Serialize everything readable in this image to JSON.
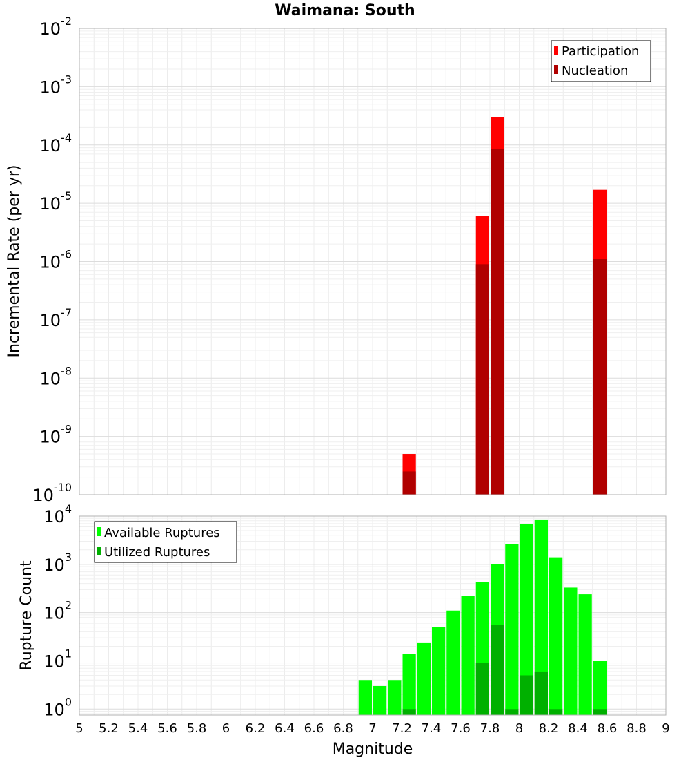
{
  "title": "Waimana: South",
  "x_axis": {
    "label": "Magnitude",
    "range": [
      5,
      9
    ],
    "ticks": [
      "5",
      "5.2",
      "5.4",
      "5.6",
      "5.8",
      "6",
      "6.2",
      "6.4",
      "6.6",
      "6.8",
      "7",
      "7.2",
      "7.4",
      "7.6",
      "7.8",
      "8",
      "8.2",
      "8.4",
      "8.6",
      "8.8",
      "9"
    ]
  },
  "chart_data": [
    {
      "type": "bar",
      "title": "Waimana: South",
      "xlabel": "",
      "ylabel": "Incremental Rate (per yr)",
      "yscale": "log",
      "ylim": [
        1e-10,
        0.01
      ],
      "ytick_exponents": [
        "-2",
        "-3",
        "-4",
        "-5",
        "-6",
        "-7",
        "-8",
        "-9",
        "-10"
      ],
      "bar_width": 0.1,
      "grid": true,
      "legend_position": "top-right",
      "series": [
        {
          "name": "Participation",
          "color": "#ff0000",
          "x": [
            7.25,
            7.75,
            7.85,
            8.55
          ],
          "values": [
            5e-10,
            6e-06,
            0.0003,
            1.7e-05
          ]
        },
        {
          "name": "Nucleation",
          "color": "#b00000",
          "x": [
            7.25,
            7.75,
            7.85,
            8.55
          ],
          "values": [
            2.5e-10,
            9e-07,
            8.5e-05,
            1.1e-06
          ]
        }
      ]
    },
    {
      "type": "bar",
      "title": "",
      "xlabel": "Magnitude",
      "ylabel": "Rupture Count",
      "yscale": "log",
      "ylim": [
        0.75,
        10000
      ],
      "ytick_exponents": [
        "4",
        "3",
        "2",
        "1",
        "0"
      ],
      "bar_width": 0.1,
      "grid": true,
      "legend_position": "top-left",
      "series": [
        {
          "name": "Available Ruptures",
          "color": "#00ff00",
          "x": [
            6.95,
            7.05,
            7.15,
            7.25,
            7.35,
            7.45,
            7.55,
            7.65,
            7.75,
            7.85,
            7.95,
            8.05,
            8.15,
            8.25,
            8.35,
            8.45,
            8.55
          ],
          "values": [
            4,
            3,
            4,
            14,
            24,
            50,
            110,
            220,
            430,
            1000,
            2600,
            6900,
            8500,
            1400,
            330,
            240,
            10
          ]
        },
        {
          "name": "Utilized Ruptures",
          "color": "#00b000",
          "x": [
            7.25,
            7.75,
            7.85,
            7.95,
            8.05,
            8.15,
            8.25,
            8.55
          ],
          "values": [
            1,
            9,
            55,
            1,
            5,
            6,
            1,
            1
          ]
        }
      ]
    }
  ]
}
